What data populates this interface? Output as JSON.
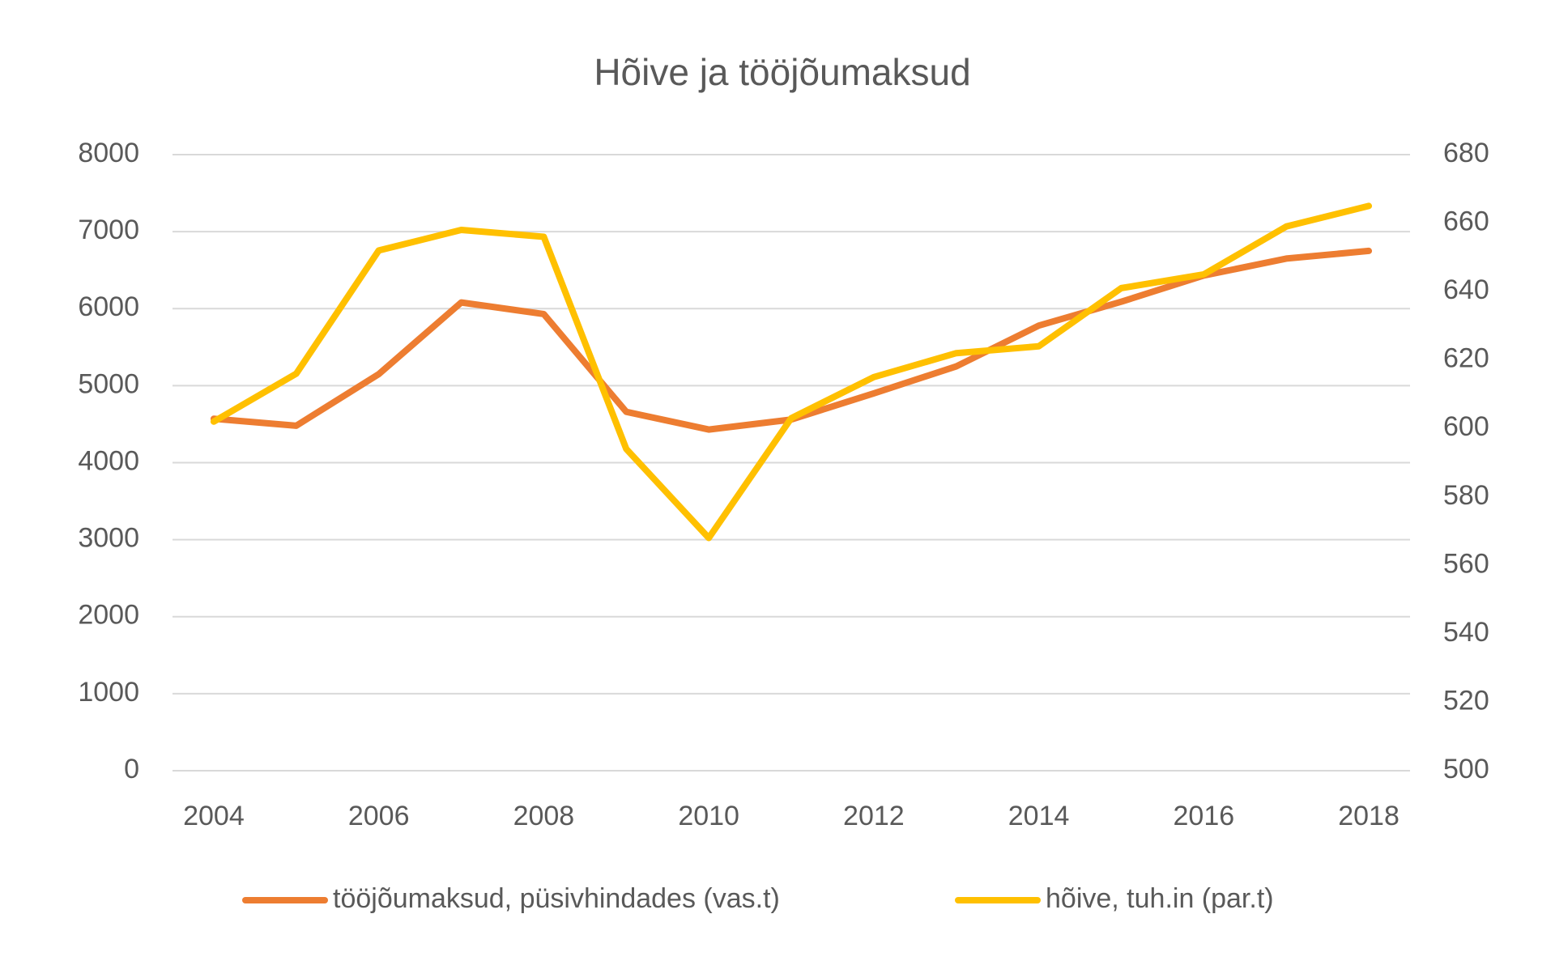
{
  "chart_data": {
    "type": "line",
    "title": "Hõive ja tööjõumaksud",
    "x": [
      2004,
      2005,
      2006,
      2007,
      2008,
      2009,
      2010,
      2011,
      2012,
      2013,
      2014,
      2015,
      2016,
      2017,
      2018
    ],
    "xlim": [
      2003.5,
      2018.5
    ],
    "xticks": [
      2004,
      2006,
      2008,
      2010,
      2012,
      2014,
      2016,
      2018
    ],
    "ylim": [
      0,
      8000
    ],
    "yticks": [
      0,
      1000,
      2000,
      3000,
      4000,
      5000,
      6000,
      7000,
      8000
    ],
    "y2lim": [
      500,
      680
    ],
    "y2ticks": [
      500,
      520,
      540,
      560,
      580,
      600,
      620,
      640,
      660,
      680
    ],
    "grid": true,
    "legend": "bottom",
    "series": [
      {
        "name": "tööjõumaksud, püsivhindades (vas.t)",
        "color": "#ed7d31",
        "values": [
          4570,
          4480,
          5150,
          6080,
          5930,
          4660,
          4430,
          4560,
          4900,
          5250,
          5780,
          6090,
          6430,
          6650,
          6750
        ]
      },
      {
        "name": "hõive, tuh.in (par.t)",
        "color": "#ffc000",
        "axis": "y2",
        "values": [
          602,
          616,
          652,
          658,
          656,
          594,
          568,
          603,
          615,
          622,
          624,
          641,
          645,
          659,
          665
        ]
      }
    ]
  }
}
